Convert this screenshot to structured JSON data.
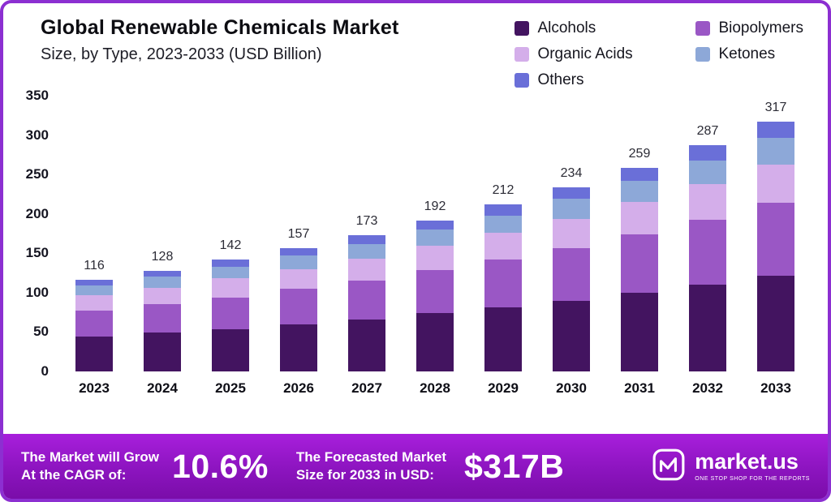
{
  "header": {
    "title": "Global Renewable Chemicals Market",
    "subtitle": "Size, by Type, 2023-2033 (USD Billion)"
  },
  "legend": [
    {
      "label": "Alcohols",
      "color": "#431460"
    },
    {
      "label": "Biopolymers",
      "color": "#9a57c5"
    },
    {
      "label": "Organic Acids",
      "color": "#d4aeea"
    },
    {
      "label": "Ketones",
      "color": "#8da8d8"
    },
    {
      "label": "Others",
      "color": "#6a6fd8"
    }
  ],
  "chart_data": {
    "type": "bar",
    "stacked": true,
    "title": "Global Renewable Chemicals Market Size, by Type, 2023-2033 (USD Billion)",
    "xlabel": "",
    "ylabel": "",
    "categories": [
      "2023",
      "2024",
      "2025",
      "2026",
      "2027",
      "2028",
      "2029",
      "2030",
      "2031",
      "2032",
      "2033"
    ],
    "totals": [
      116,
      128,
      142,
      157,
      173,
      192,
      212,
      234,
      259,
      287,
      317
    ],
    "series": [
      {
        "name": "Alcohols",
        "color": "#431460",
        "values": [
          44,
          49,
          54,
          60,
          66,
          74,
          81,
          90,
          100,
          110,
          122
        ]
      },
      {
        "name": "Biopolymers",
        "color": "#9a57c5",
        "values": [
          33,
          36,
          40,
          45,
          49,
          55,
          61,
          67,
          74,
          82,
          92
        ]
      },
      {
        "name": "Organic Acids",
        "color": "#d4aeea",
        "values": [
          20,
          21,
          24,
          25,
          28,
          31,
          34,
          37,
          41,
          46,
          49
        ]
      },
      {
        "name": "Ketones",
        "color": "#8da8d8",
        "values": [
          12,
          14,
          15,
          17,
          19,
          20,
          22,
          25,
          27,
          30,
          33
        ]
      },
      {
        "name": "Others",
        "color": "#6a6fd8",
        "values": [
          7,
          8,
          9,
          10,
          11,
          12,
          14,
          15,
          17,
          19,
          21
        ]
      }
    ],
    "ylim": [
      0,
      350
    ],
    "yticks": [
      0,
      50,
      100,
      150,
      200,
      250,
      300,
      350
    ],
    "grid": false,
    "legend_position": "top-right"
  },
  "banner": {
    "cagr_label_line1": "The Market will Grow",
    "cagr_label_line2": "At the CAGR of:",
    "cagr_value": "10.6%",
    "forecast_label_line1": "The Forecasted Market",
    "forecast_label_line2": "Size for 2033 in USD:",
    "forecast_value": "$317B",
    "logo_text": "market.us",
    "logo_tagline": "ONE STOP SHOP FOR THE REPORTS"
  }
}
